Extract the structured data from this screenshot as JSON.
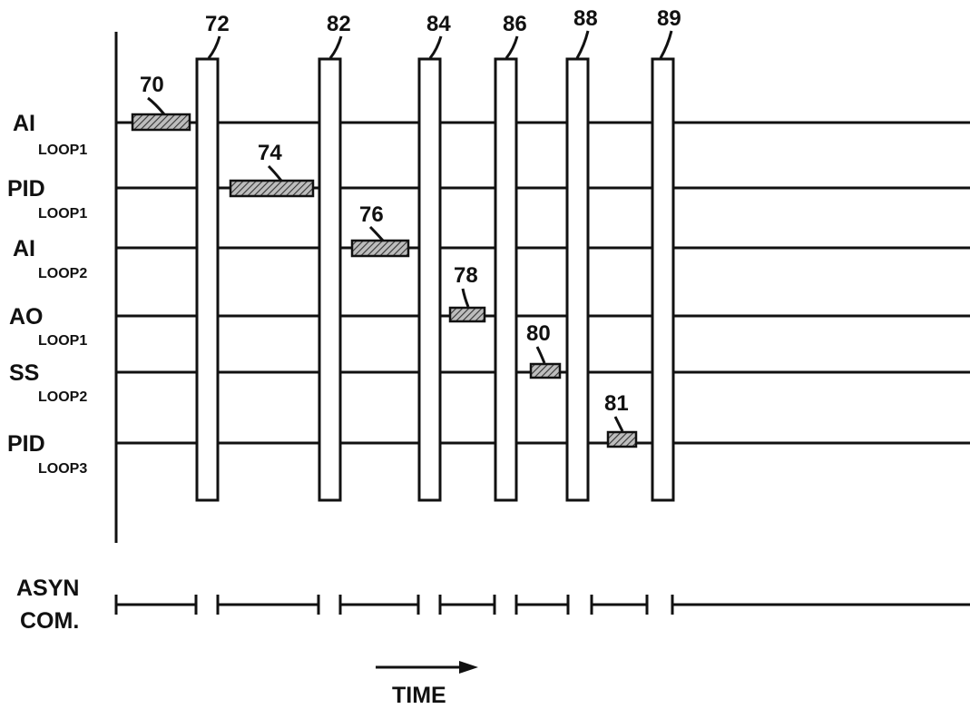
{
  "rows": [
    {
      "main": "AI",
      "sub": "LOOP1"
    },
    {
      "main": "PID",
      "sub": "LOOP1"
    },
    {
      "main": "AI",
      "sub": "LOOP2"
    },
    {
      "main": "AO",
      "sub": "LOOP1"
    },
    {
      "main": "SS",
      "sub": "LOOP2"
    },
    {
      "main": "PID",
      "sub": "LOOP3"
    }
  ],
  "slots": [
    {
      "ref": "72"
    },
    {
      "ref": "82"
    },
    {
      "ref": "84"
    },
    {
      "ref": "86"
    },
    {
      "ref": "88"
    },
    {
      "ref": "89"
    }
  ],
  "blocks": [
    {
      "ref": "70"
    },
    {
      "ref": "74"
    },
    {
      "ref": "76"
    },
    {
      "ref": "78"
    },
    {
      "ref": "80"
    },
    {
      "ref": "81"
    }
  ],
  "comm": {
    "line1": "ASYN",
    "line2": "COM."
  },
  "time_label": "TIME",
  "colors": {
    "ink": "#111111",
    "hatch": "#444444"
  }
}
